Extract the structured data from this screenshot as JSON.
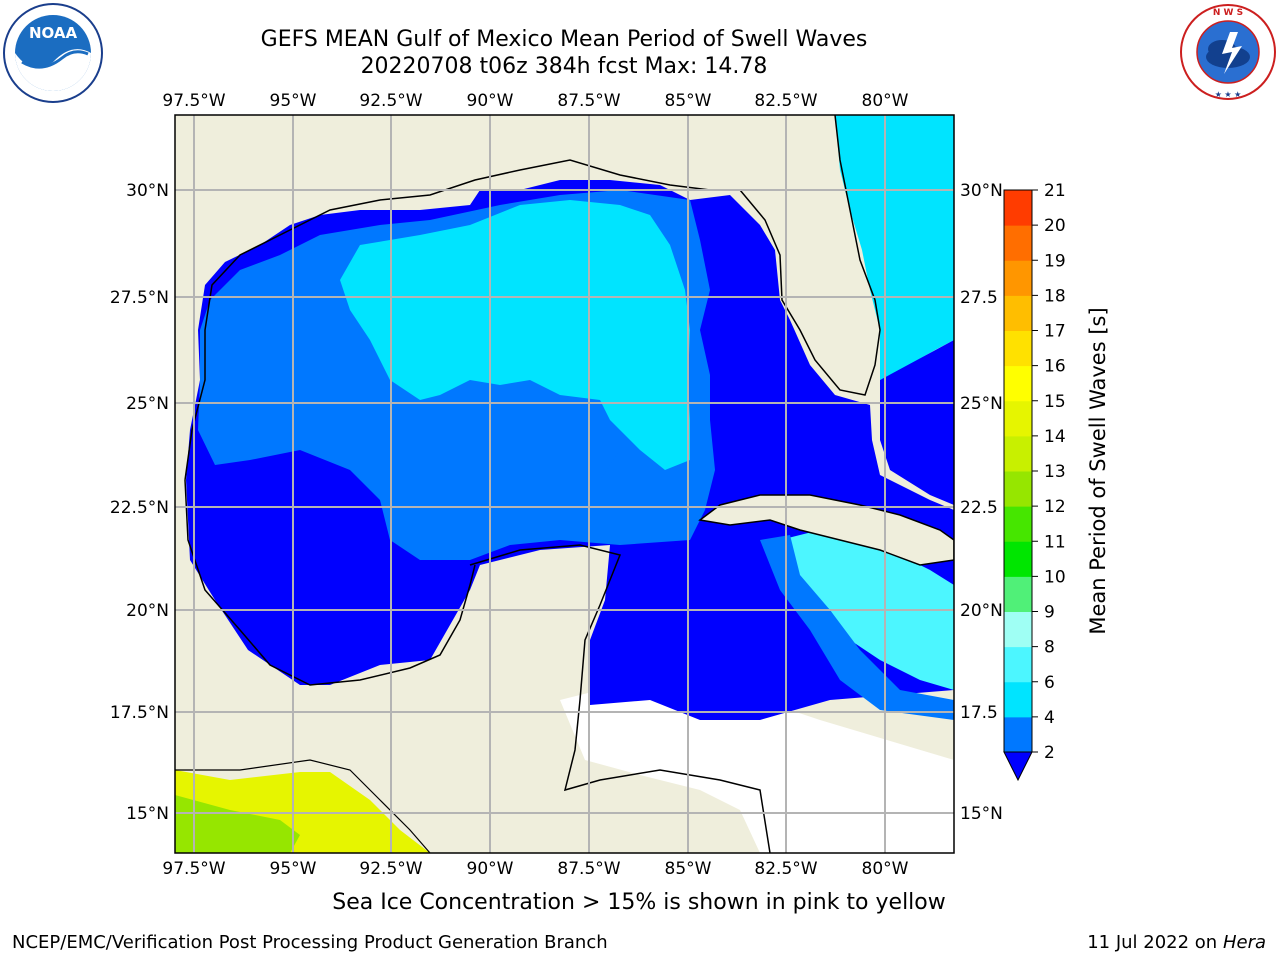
{
  "title": {
    "line1": "GEFS MEAN Gulf of Mexico Mean Period of Swell Waves",
    "line2": "20220708 t06z 384h fcst   Max: 14.78"
  },
  "map": {
    "lon_labels": [
      "97.5°W",
      "95°W",
      "92.5°W",
      "90°W",
      "87.5°W",
      "85°W",
      "82.5°W",
      "80°W"
    ],
    "lat_labels_left": [
      "30°N",
      "27.5°N",
      "25°N",
      "22.5°N",
      "20°N",
      "17.5°N",
      "15°N"
    ],
    "lat_labels_right": [
      "30°N",
      "27.5",
      "25°N",
      "22.5",
      "20°N",
      "17.5",
      "15°N"
    ],
    "land_color": "#efeedc",
    "ocean_nodata_color": "#ffffff"
  },
  "colorbar": {
    "label": "Mean Period of Swell Waves [s]",
    "ticks": [
      "2",
      "4",
      "6",
      "8",
      "9",
      "10",
      "11",
      "12",
      "13",
      "14",
      "15",
      "16",
      "17",
      "18",
      "19",
      "20",
      "21"
    ],
    "colors": [
      "#0078ff",
      "#00e4ff",
      "#4cf6ff",
      "#9ffff4",
      "#50f078",
      "#00e600",
      "#46e600",
      "#96e600",
      "#c8f000",
      "#e6f500",
      "#ffff00",
      "#ffe100",
      "#ffbe00",
      "#ff9600",
      "#ff6e00",
      "#ff3c00"
    ],
    "extend_color": "#0000ff"
  },
  "subtitle": "Sea Ice Concentration > 15% is shown in pink to yellow",
  "footer": {
    "left": "NCEP/EMC/Verification Post Processing Product Generation Branch",
    "right_prefix": "11 Jul 2022 on ",
    "right_host": "Hera"
  },
  "logos": {
    "noaa": "NOAA",
    "nws": "NATIONAL WEATHER SERVICE"
  }
}
